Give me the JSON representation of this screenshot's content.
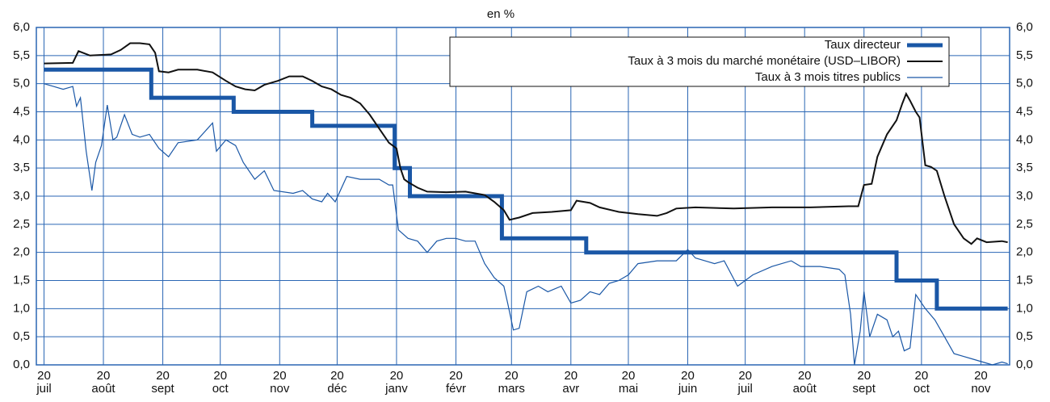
{
  "chart_data": {
    "type": "line",
    "title": "en %",
    "xlim": [
      -4,
      504
    ],
    "ylim": [
      0,
      6
    ],
    "xticks": [
      {
        "value": 0,
        "label": "20 juil"
      },
      {
        "value": 31,
        "label": "20 août"
      },
      {
        "value": 62,
        "label": "20 sept"
      },
      {
        "value": 92,
        "label": "20 oct"
      },
      {
        "value": 123,
        "label": "20 nov"
      },
      {
        "value": 153,
        "label": "20 déc"
      },
      {
        "value": 184,
        "label": "20 janv"
      },
      {
        "value": 215,
        "label": "20 févr"
      },
      {
        "value": 244,
        "label": "20 mars"
      },
      {
        "value": 275,
        "label": "20 avr"
      },
      {
        "value": 305,
        "label": "20 mai"
      },
      {
        "value": 336,
        "label": "20 juin"
      },
      {
        "value": 366,
        "label": "20 juil"
      },
      {
        "value": 397,
        "label": "20 août"
      },
      {
        "value": 428,
        "label": "20 sept"
      },
      {
        "value": 458,
        "label": "20 oct"
      },
      {
        "value": 489,
        "label": "20 nov"
      }
    ],
    "yticks": [
      {
        "value": 0,
        "label": "0,0"
      },
      {
        "value": 0.5,
        "label": "0,5"
      },
      {
        "value": 1,
        "label": "1,0"
      },
      {
        "value": 1.5,
        "label": "1,5"
      },
      {
        "value": 2,
        "label": "2,0"
      },
      {
        "value": 2.5,
        "label": "2,5"
      },
      {
        "value": 3,
        "label": "3,0"
      },
      {
        "value": 3.5,
        "label": "3,5"
      },
      {
        "value": 4,
        "label": "4,0"
      },
      {
        "value": 4.5,
        "label": "4,5"
      },
      {
        "value": 5,
        "label": "5,0"
      },
      {
        "value": 5.5,
        "label": "5,5"
      },
      {
        "value": 6,
        "label": "6,0"
      }
    ],
    "grid": true,
    "legend": "upper right",
    "grid_color": "#2a66b4",
    "series": [
      {
        "name": "Taux directeur",
        "color": "#1a57a6",
        "width": 5,
        "x": [
          0,
          56,
          56,
          99,
          99,
          140,
          140,
          183,
          183,
          191,
          191,
          239,
          239,
          283,
          283,
          445,
          445,
          466,
          466,
          503
        ],
        "values": [
          5.25,
          5.25,
          4.75,
          4.75,
          4.5,
          4.5,
          4.25,
          4.25,
          3.5,
          3.5,
          3.0,
          3.0,
          2.25,
          2.25,
          2.0,
          2.0,
          1.5,
          1.5,
          1.0,
          1.0
        ]
      },
      {
        "name": "Taux à 3 mois du marché monétaire (USD–LIBOR)",
        "color": "#111111",
        "width": 2,
        "x": [
          0,
          15,
          18,
          24,
          35,
          40,
          45,
          50,
          55,
          58,
          60,
          65,
          70,
          80,
          88,
          95,
          100,
          105,
          110,
          115,
          122,
          128,
          135,
          140,
          145,
          150,
          155,
          160,
          165,
          170,
          175,
          180,
          184,
          186,
          188,
          190,
          195,
          200,
          210,
          220,
          230,
          235,
          240,
          243,
          248,
          255,
          265,
          275,
          278,
          285,
          290,
          300,
          310,
          320,
          325,
          330,
          340,
          360,
          380,
          400,
          420,
          425,
          428,
          432,
          435,
          440,
          445,
          448,
          450,
          452,
          455,
          457,
          460,
          463,
          466,
          470,
          475,
          480,
          484,
          487,
          492,
          500,
          503
        ],
        "values": [
          5.36,
          5.37,
          5.58,
          5.5,
          5.52,
          5.6,
          5.72,
          5.72,
          5.7,
          5.55,
          5.22,
          5.2,
          5.25,
          5.25,
          5.2,
          5.05,
          4.95,
          4.9,
          4.88,
          4.98,
          5.05,
          5.13,
          5.13,
          5.05,
          4.95,
          4.9,
          4.8,
          4.75,
          4.65,
          4.45,
          4.2,
          3.95,
          3.85,
          3.5,
          3.3,
          3.25,
          3.15,
          3.08,
          3.07,
          3.08,
          3.02,
          2.9,
          2.75,
          2.58,
          2.62,
          2.7,
          2.72,
          2.75,
          2.92,
          2.88,
          2.8,
          2.72,
          2.68,
          2.65,
          2.7,
          2.78,
          2.8,
          2.78,
          2.8,
          2.8,
          2.82,
          2.82,
          3.2,
          3.22,
          3.7,
          4.1,
          4.35,
          4.65,
          4.82,
          4.7,
          4.5,
          4.4,
          3.55,
          3.52,
          3.45,
          3.0,
          2.5,
          2.25,
          2.15,
          2.25,
          2.18,
          2.2,
          2.18
        ]
      },
      {
        "name": "Taux à 3 mois titres publics",
        "color": "#1a57a6",
        "width": 1.2,
        "x": [
          0,
          5,
          10,
          15,
          17,
          19,
          22,
          25,
          27,
          30,
          33,
          36,
          38,
          42,
          46,
          50,
          55,
          60,
          65,
          70,
          80,
          88,
          90,
          95,
          100,
          104,
          110,
          115,
          120,
          130,
          135,
          140,
          145,
          148,
          152,
          158,
          165,
          175,
          180,
          182,
          185,
          190,
          195,
          200,
          205,
          210,
          215,
          220,
          225,
          230,
          235,
          240,
          242,
          245,
          248,
          252,
          258,
          263,
          270,
          275,
          280,
          285,
          290,
          295,
          300,
          305,
          310,
          320,
          330,
          336,
          340,
          345,
          350,
          355,
          362,
          370,
          380,
          390,
          395,
          405,
          415,
          418,
          421,
          423,
          426,
          428,
          431,
          435,
          440,
          443,
          446,
          449,
          452,
          455,
          460,
          465,
          470,
          475,
          480,
          485,
          490,
          495,
          500,
          503
        ],
        "values": [
          5.0,
          4.95,
          4.9,
          4.95,
          4.6,
          4.75,
          3.8,
          3.1,
          3.6,
          3.9,
          4.62,
          4.0,
          4.05,
          4.45,
          4.1,
          4.05,
          4.1,
          3.85,
          3.7,
          3.95,
          4.0,
          4.3,
          3.8,
          4.0,
          3.9,
          3.6,
          3.3,
          3.45,
          3.1,
          3.05,
          3.1,
          2.95,
          2.9,
          3.05,
          2.9,
          3.35,
          3.3,
          3.3,
          3.2,
          3.2,
          2.4,
          2.25,
          2.2,
          2.0,
          2.2,
          2.25,
          2.25,
          2.2,
          2.2,
          1.8,
          1.55,
          1.4,
          1.1,
          0.62,
          0.65,
          1.3,
          1.4,
          1.3,
          1.4,
          1.1,
          1.15,
          1.3,
          1.25,
          1.45,
          1.5,
          1.6,
          1.8,
          1.85,
          1.85,
          2.05,
          1.9,
          1.85,
          1.8,
          1.85,
          1.4,
          1.6,
          1.75,
          1.85,
          1.75,
          1.75,
          1.7,
          1.6,
          0.9,
          0.0,
          0.6,
          1.3,
          0.5,
          0.9,
          0.8,
          0.5,
          0.6,
          0.25,
          0.3,
          1.25,
          1.0,
          0.8,
          0.5,
          0.2,
          0.15,
          0.1,
          0.05,
          0.0,
          0.05,
          0.02
        ]
      }
    ]
  }
}
